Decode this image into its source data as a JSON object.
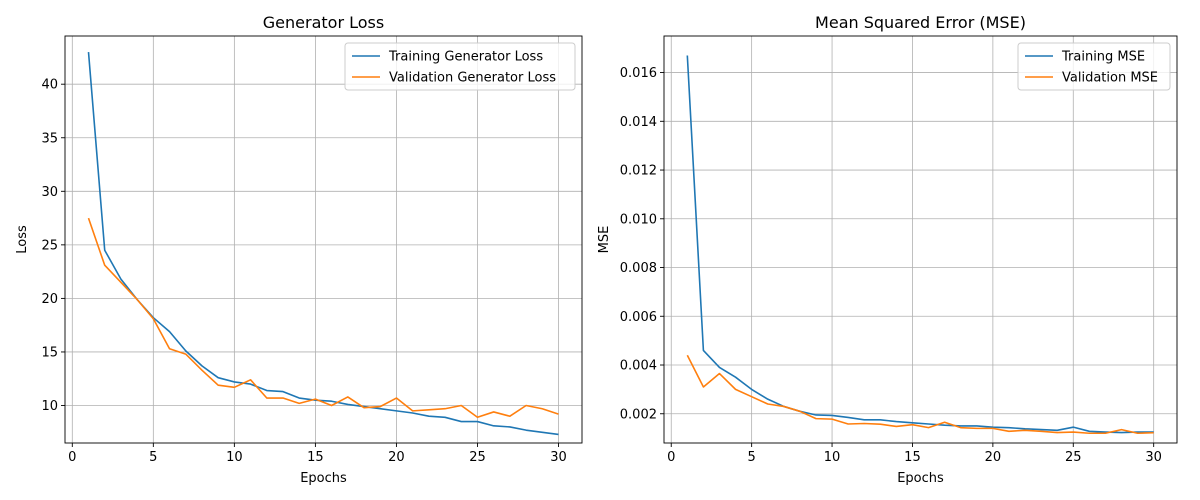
{
  "chart_data": [
    {
      "type": "line",
      "title": "Generator Loss",
      "xlabel": "Epochs",
      "ylabel": "Loss",
      "xlim": [
        -0.45,
        31.45
      ],
      "ylim": [
        6.5,
        44.5
      ],
      "xticks": [
        0,
        5,
        10,
        15,
        20,
        25,
        30
      ],
      "xtick_labels": [
        "0",
        "5",
        "10",
        "15",
        "20",
        "25",
        "30"
      ],
      "yticks": [
        10,
        15,
        20,
        25,
        30,
        35,
        40
      ],
      "ytick_labels": [
        "10",
        "15",
        "20",
        "25",
        "30",
        "35",
        "40"
      ],
      "grid": true,
      "legend": "upper right",
      "x": [
        1,
        2,
        3,
        4,
        5,
        6,
        7,
        8,
        9,
        10,
        11,
        12,
        13,
        14,
        15,
        16,
        17,
        18,
        19,
        20,
        21,
        22,
        23,
        24,
        25,
        26,
        27,
        28,
        29,
        30
      ],
      "series": [
        {
          "name": "Training Generator Loss",
          "color": "#1f77b4",
          "values": [
            43.0,
            24.5,
            21.8,
            19.9,
            18.2,
            16.9,
            15.1,
            13.7,
            12.6,
            12.2,
            12.0,
            11.4,
            11.3,
            10.7,
            10.5,
            10.4,
            10.1,
            9.9,
            9.7,
            9.5,
            9.3,
            9.0,
            8.9,
            8.5,
            8.5,
            8.1,
            8.0,
            7.7,
            7.5,
            7.3
          ]
        },
        {
          "name": "Validation Generator Loss",
          "color": "#ff7f0e",
          "values": [
            27.5,
            23.1,
            21.5,
            19.9,
            18.1,
            15.3,
            14.8,
            13.3,
            11.9,
            11.7,
            12.4,
            10.7,
            10.7,
            10.2,
            10.6,
            10.0,
            10.8,
            9.8,
            9.9,
            10.7,
            9.5,
            9.6,
            9.7,
            10.0,
            8.9,
            9.4,
            9.0,
            10.0,
            9.7,
            9.2
          ]
        }
      ]
    },
    {
      "type": "line",
      "title": "Mean Squared Error (MSE)",
      "xlabel": "Epochs",
      "ylabel": "MSE",
      "xlim": [
        -0.45,
        31.45
      ],
      "ylim": [
        0.0008,
        0.0175
      ],
      "xticks": [
        0,
        5,
        10,
        15,
        20,
        25,
        30
      ],
      "xtick_labels": [
        "0",
        "5",
        "10",
        "15",
        "20",
        "25",
        "30"
      ],
      "yticks": [
        0.002,
        0.004,
        0.006,
        0.008,
        0.01,
        0.012,
        0.014,
        0.016
      ],
      "ytick_labels": [
        "0.002",
        "0.004",
        "0.006",
        "0.008",
        "0.010",
        "0.012",
        "0.014",
        "0.016"
      ],
      "grid": true,
      "legend": "upper right",
      "x": [
        1,
        2,
        3,
        4,
        5,
        6,
        7,
        8,
        9,
        10,
        11,
        12,
        13,
        14,
        15,
        16,
        17,
        18,
        19,
        20,
        21,
        22,
        23,
        24,
        25,
        26,
        27,
        28,
        29,
        30
      ],
      "series": [
        {
          "name": "Training MSE",
          "color": "#1f77b4",
          "values": [
            0.0167,
            0.0046,
            0.0039,
            0.0035,
            0.003,
            0.0026,
            0.0023,
            0.0021,
            0.00195,
            0.00193,
            0.00185,
            0.00175,
            0.00175,
            0.00168,
            0.00163,
            0.00158,
            0.00153,
            0.0015,
            0.0015,
            0.00145,
            0.00143,
            0.00138,
            0.00135,
            0.00132,
            0.00145,
            0.00128,
            0.00125,
            0.00123,
            0.00125,
            0.00125
          ]
        },
        {
          "name": "Validation MSE",
          "color": "#ff7f0e",
          "values": [
            0.0044,
            0.0031,
            0.00365,
            0.003,
            0.0027,
            0.0024,
            0.0023,
            0.0021,
            0.0018,
            0.00178,
            0.00158,
            0.0016,
            0.00157,
            0.00148,
            0.00155,
            0.00143,
            0.00165,
            0.00143,
            0.0014,
            0.0014,
            0.00128,
            0.00132,
            0.00128,
            0.00123,
            0.00125,
            0.0012,
            0.0012,
            0.00135,
            0.0012,
            0.00122
          ]
        }
      ]
    }
  ]
}
